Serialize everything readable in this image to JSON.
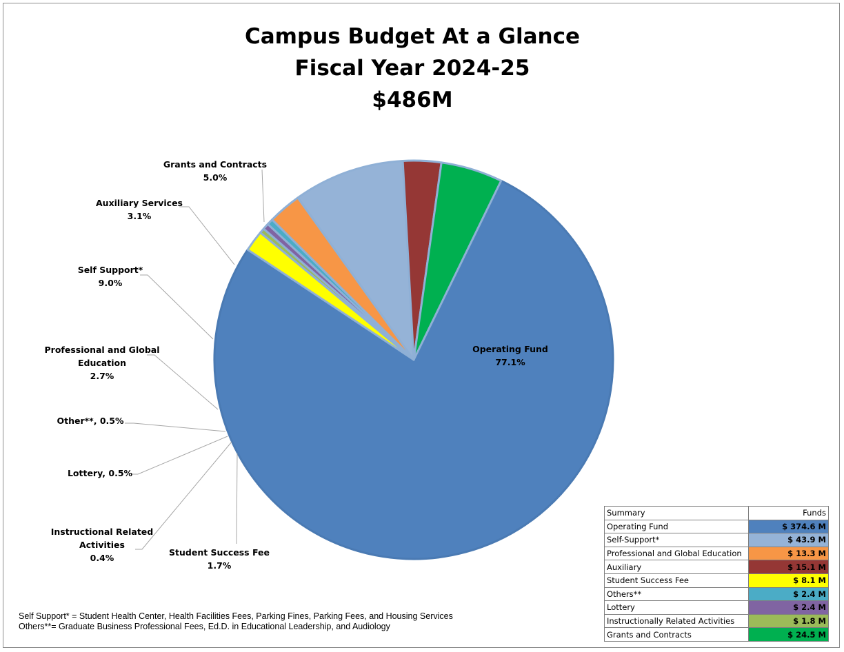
{
  "title": {
    "line1": "Campus Budget At a Glance",
    "line2": "Fiscal Year 2024-25",
    "line3": "$486M"
  },
  "chart_data": {
    "type": "pie",
    "title": "Campus Budget At a Glance Fiscal Year 2024-25 $486M",
    "slices": [
      {
        "label": "Operating Fund",
        "pct_label": "77.1%",
        "value": 77.1,
        "color": "#4f81bd"
      },
      {
        "label": "Student Success Fee",
        "pct_label": "1.7%",
        "value": 1.7,
        "color": "#ffff00"
      },
      {
        "label": "Instructional Related Activities",
        "pct_label": "0.4%",
        "value": 0.4,
        "color": "#9bbb59"
      },
      {
        "label": "Lottery",
        "pct_label": "0.5%",
        "value": 0.5,
        "color": "#8064a2"
      },
      {
        "label": "Other**",
        "pct_label": "0.5%",
        "value": 0.5,
        "color": "#4bacc6"
      },
      {
        "label": "Professional and Global Education",
        "pct_label": "2.7%",
        "value": 2.7,
        "color": "#f79646"
      },
      {
        "label": "Self Support*",
        "pct_label": "9.0%",
        "value": 9.0,
        "color": "#95b3d7"
      },
      {
        "label": "Auxiliary Services",
        "pct_label": "3.1%",
        "value": 3.1,
        "color": "#953735"
      },
      {
        "label": "Grants and Contracts",
        "pct_label": "5.0%",
        "value": 5.0,
        "color": "#00b050"
      }
    ]
  },
  "labels": {
    "operating_name": "Operating Fund",
    "operating_pct": "77.1%",
    "grants_name": "Grants and Contracts",
    "grants_pct": "5.0%",
    "aux_name": "Auxiliary Services",
    "aux_pct": "3.1%",
    "self_name": "Self Support*",
    "self_pct": "9.0%",
    "pge_line1": "Professional and Global",
    "pge_line2": "Education",
    "pge_pct": "2.7%",
    "other": "Other**, 0.5%",
    "lottery": "Lottery, 0.5%",
    "ira_line1": "Instructional Related",
    "ira_line2": "Activities",
    "ira_pct": "0.4%",
    "ssf_name": "Student Success Fee",
    "ssf_pct": "1.7%"
  },
  "summary": {
    "header_name": "Summary",
    "header_funds": "Funds",
    "rows": [
      {
        "name": "Operating Fund",
        "funds": "$ 374.6 M",
        "color": "#4f81bd"
      },
      {
        "name": "Self-Support*",
        "funds": "$ 43.9 M",
        "color": "#95b3d7"
      },
      {
        "name": "Professional and Global Education",
        "funds": "$ 13.3 M",
        "color": "#f79646"
      },
      {
        "name": "Auxiliary",
        "funds": "$ 15.1 M",
        "color": "#953735"
      },
      {
        "name": "Student Success Fee",
        "funds": "$ 8.1 M",
        "color": "#ffff00"
      },
      {
        "name": "Others**",
        "funds": "$ 2.4 M",
        "color": "#4bacc6"
      },
      {
        "name": "Lottery",
        "funds": "$ 2.4 M",
        "color": "#8064a2"
      },
      {
        "name": "Instructionally Related Activities",
        "funds": "$ 1.8 M",
        "color": "#9bbb59"
      },
      {
        "name": "Grants and Contracts",
        "funds": "$ 24.5 M",
        "color": "#00b050"
      }
    ]
  },
  "footnotes": {
    "line1": "Self Support* = Student Health Center, Health Facilities Fees, Parking Fines, Parking Fees, and Housing Services",
    "line2": "Others**= Graduate Business Professional Fees, Ed.D. in Educational Leadership, and Audiology"
  }
}
